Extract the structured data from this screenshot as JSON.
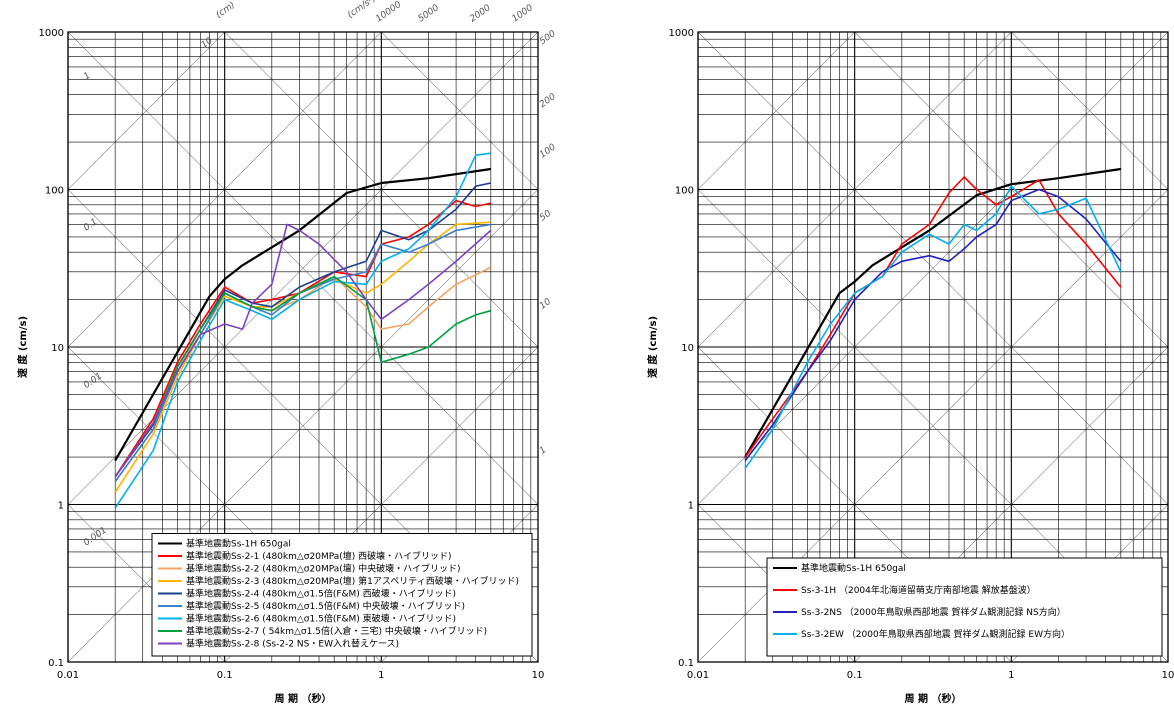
{
  "chart_data": [
    {
      "type": "line",
      "scale": "log-log tripartite",
      "xlabel": "周 期 （秒）",
      "ylabel": "速 度 (cm/s)",
      "xlim": [
        0.01,
        10
      ],
      "ylim": [
        0.1,
        1000
      ],
      "x_ticks": [
        "0.01",
        "0.1",
        "1",
        "10"
      ],
      "y_ticks": [
        "0.1",
        "1",
        "10",
        "100",
        "1000"
      ],
      "top_labels": [
        "(cm)",
        "(cm/s²)",
        "10000",
        "5000",
        "2000",
        "1000"
      ],
      "right_labels": [
        "500",
        "200",
        "100",
        "50",
        "10",
        "1"
      ],
      "disp_labels": [
        "10",
        "1",
        "0.1",
        "0.01",
        "0.001"
      ],
      "grid": true,
      "legend": "bottom-right",
      "series": [
        {
          "name": "基準地震動Ss-1H 650gal",
          "color": "#000000",
          "x": [
            0.02,
            0.08,
            0.1,
            0.13,
            0.3,
            0.6,
            1.0,
            2.0,
            5.0
          ],
          "y": [
            1.9,
            21,
            27,
            33,
            55,
            95,
            110,
            118,
            135
          ]
        },
        {
          "name": "基準地震動Ss-2-1 (480km△σ20MPa(壇) 西破壊・ハイブリッド)",
          "color": "#ff0000",
          "x": [
            0.02,
            0.035,
            0.05,
            0.07,
            0.1,
            0.15,
            0.2,
            0.3,
            0.5,
            0.8,
            1.0,
            1.5,
            2.0,
            3.0,
            4.0,
            5.0
          ],
          "y": [
            1.5,
            3.5,
            8,
            14,
            24,
            19,
            20,
            22,
            30,
            28,
            45,
            50,
            60,
            85,
            78,
            82
          ]
        },
        {
          "name": "基準地震動Ss-2-2 (480km△σ20MPa(壇) 中央破壊・ハイブリッド)",
          "color": "#f4a460",
          "x": [
            0.02,
            0.035,
            0.05,
            0.07,
            0.1,
            0.15,
            0.2,
            0.3,
            0.5,
            0.8,
            1.0,
            1.5,
            2.0,
            3.0,
            5.0
          ],
          "y": [
            1.4,
            3.0,
            7,
            13,
            22,
            18,
            17,
            20,
            28,
            18,
            13,
            14,
            18,
            25,
            32
          ]
        },
        {
          "name": "基準地震動Ss-2-3 (480km△σ20MPa(壇) 第1アスペリティ西破壊・ハイブリッド)",
          "color": "#ffb400",
          "x": [
            0.02,
            0.035,
            0.05,
            0.07,
            0.1,
            0.15,
            0.2,
            0.3,
            0.5,
            0.8,
            1.0,
            1.5,
            2.0,
            3.0,
            5.0
          ],
          "y": [
            1.2,
            2.8,
            6.5,
            12,
            21,
            18,
            18,
            22,
            27,
            22,
            25,
            35,
            45,
            60,
            62
          ]
        },
        {
          "name": "基準地震動Ss-2-4 (480km△σ1.5倍(F&M) 西破壊・ハイブリッド)",
          "color": "#1f3f8f",
          "x": [
            0.02,
            0.035,
            0.05,
            0.07,
            0.1,
            0.15,
            0.2,
            0.3,
            0.5,
            0.8,
            1.0,
            1.5,
            2.0,
            3.0,
            4.0,
            5.0
          ],
          "y": [
            1.5,
            3.2,
            7.5,
            13,
            23,
            19,
            18,
            24,
            30,
            35,
            55,
            48,
            55,
            75,
            105,
            110
          ]
        },
        {
          "name": "基準地震動Ss-2-5 (480km△σ1.5倍(F&M) 中央破壊・ハイブリッド)",
          "color": "#3a7fd0",
          "x": [
            0.02,
            0.035,
            0.05,
            0.07,
            0.1,
            0.15,
            0.2,
            0.3,
            0.5,
            0.8,
            1.0,
            1.5,
            2.0,
            3.0,
            5.0
          ],
          "y": [
            1.4,
            3.0,
            7,
            12,
            22,
            18,
            16,
            22,
            27,
            30,
            45,
            40,
            45,
            55,
            60
          ]
        },
        {
          "name": "基準地震動Ss-2-6 (480km△σ1.5倍(F&M) 東破壊・ハイブリッド)",
          "color": "#00b0f0",
          "x": [
            0.02,
            0.035,
            0.05,
            0.07,
            0.1,
            0.15,
            0.2,
            0.3,
            0.5,
            0.8,
            1.0,
            1.5,
            2.0,
            3.0,
            4.0,
            5.0
          ],
          "y": [
            0.95,
            2.2,
            6,
            11,
            20,
            17,
            15,
            20,
            26,
            25,
            35,
            42,
            55,
            90,
            165,
            170
          ]
        },
        {
          "name": "基準地震動Ss-2-7 ( 54km△σ1.5倍(入倉・三宅) 中央破壊・ハイブリッド)",
          "color": "#00a040",
          "x": [
            0.02,
            0.035,
            0.05,
            0.07,
            0.1,
            0.15,
            0.2,
            0.3,
            0.5,
            0.8,
            1.0,
            1.5,
            2.0,
            3.0,
            4.0,
            5.0
          ],
          "y": [
            1.5,
            3.3,
            7.5,
            13,
            22,
            18,
            17,
            22,
            28,
            20,
            8,
            9,
            10,
            14,
            16,
            17
          ]
        },
        {
          "name": "基準地震動Ss-2-8 (Ss-2-2 NS・EW入れ替えケース)",
          "color": "#8040c0",
          "x": [
            0.02,
            0.035,
            0.05,
            0.07,
            0.1,
            0.13,
            0.15,
            0.2,
            0.25,
            0.3,
            0.4,
            0.6,
            0.8,
            1.0,
            1.5,
            2.0,
            3.0,
            5.0
          ],
          "y": [
            1.5,
            3.3,
            7,
            12,
            14,
            13,
            19,
            25,
            60,
            55,
            45,
            30,
            20,
            15,
            20,
            25,
            35,
            55
          ]
        }
      ]
    },
    {
      "type": "line",
      "scale": "log-log tripartite",
      "xlabel": "周 期 （秒）",
      "ylabel": "速 度 (cm/s)",
      "xlim": [
        0.01,
        10
      ],
      "ylim": [
        0.1,
        1000
      ],
      "x_ticks": [
        "0.01",
        "0.1",
        "1",
        "10"
      ],
      "y_ticks": [
        "0.1",
        "1",
        "10",
        "100",
        "1000"
      ],
      "grid": true,
      "legend": "bottom-right",
      "series": [
        {
          "name": "基準地震動Ss-1H 650gal",
          "color": "#000000",
          "x": [
            0.02,
            0.08,
            0.1,
            0.13,
            0.3,
            0.6,
            1.0,
            2.0,
            5.0
          ],
          "y": [
            2.0,
            22,
            26,
            33,
            55,
            92,
            108,
            118,
            135
          ]
        },
        {
          "name": "Ss-3-1H （2004年北海道留萌支庁南部地震 解放基盤波）",
          "color": "#ff0000",
          "x": [
            0.02,
            0.03,
            0.05,
            0.07,
            0.1,
            0.15,
            0.2,
            0.3,
            0.4,
            0.5,
            0.6,
            0.8,
            1.0,
            1.5,
            2.0,
            3.0,
            5.0
          ],
          "y": [
            2.0,
            3.5,
            7,
            12,
            22,
            28,
            45,
            60,
            95,
            120,
            100,
            80,
            90,
            115,
            70,
            45,
            24
          ]
        },
        {
          "name": "Ss-3-2NS （2000年鳥取県西部地震 賀祥ダム観測記録 NS方向）",
          "color": "#2020c0",
          "x": [
            0.02,
            0.03,
            0.05,
            0.07,
            0.1,
            0.15,
            0.2,
            0.3,
            0.4,
            0.5,
            0.6,
            0.8,
            1.0,
            1.5,
            2.0,
            3.0,
            5.0
          ],
          "y": [
            1.9,
            3.2,
            7,
            11,
            20,
            30,
            35,
            38,
            35,
            42,
            50,
            60,
            85,
            100,
            90,
            65,
            35
          ]
        },
        {
          "name": "Ss-3-2EW （2000年鳥取県西部地震 賀祥ダム観測記録 EW方向）",
          "color": "#00b0f0",
          "x": [
            0.02,
            0.03,
            0.05,
            0.07,
            0.1,
            0.15,
            0.2,
            0.3,
            0.4,
            0.5,
            0.6,
            0.8,
            1.0,
            1.5,
            2.0,
            3.0,
            5.0
          ],
          "y": [
            1.7,
            3.0,
            8,
            14,
            22,
            28,
            40,
            52,
            45,
            60,
            55,
            70,
            105,
            70,
            75,
            88,
            30
          ]
        }
      ]
    }
  ]
}
